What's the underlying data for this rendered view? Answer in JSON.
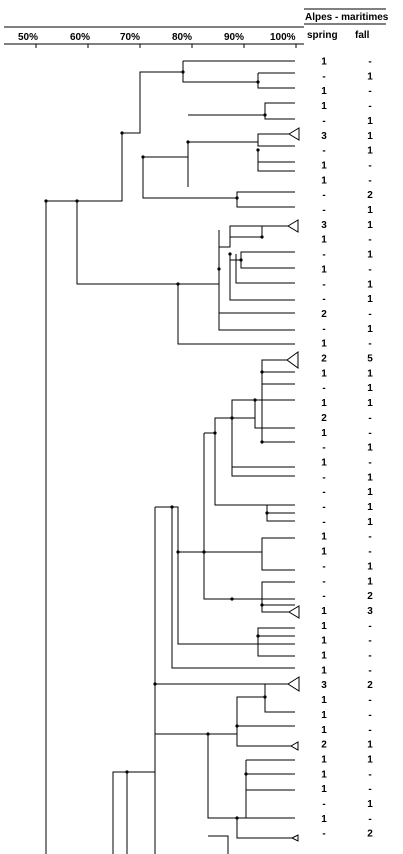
{
  "header": {
    "region": "Alpes - maritimes",
    "col_spring": "spring",
    "col_fall": "fall"
  },
  "scale_labels": [
    "50%",
    "60%",
    "70%",
    "80%",
    "90%",
    "100%"
  ],
  "rows": [
    {
      "spring": "1",
      "fall": "-"
    },
    {
      "spring": "-",
      "fall": "1"
    },
    {
      "spring": "1",
      "fall": "-"
    },
    {
      "spring": "1",
      "fall": "-"
    },
    {
      "spring": "-",
      "fall": "1"
    },
    {
      "spring": "3",
      "fall": "1"
    },
    {
      "spring": "-",
      "fall": "1"
    },
    {
      "spring": "1",
      "fall": "-"
    },
    {
      "spring": "1",
      "fall": "-"
    },
    {
      "spring": "-",
      "fall": "2"
    },
    {
      "spring": "-",
      "fall": "1"
    },
    {
      "spring": "3",
      "fall": "1"
    },
    {
      "spring": "1",
      "fall": "-"
    },
    {
      "spring": "-",
      "fall": "1"
    },
    {
      "spring": "1",
      "fall": "-"
    },
    {
      "spring": "-",
      "fall": "1"
    },
    {
      "spring": "-",
      "fall": "1"
    },
    {
      "spring": "2",
      "fall": "-"
    },
    {
      "spring": "-",
      "fall": "1"
    },
    {
      "spring": "1",
      "fall": "-"
    },
    {
      "spring": "2",
      "fall": "5"
    },
    {
      "spring": "1",
      "fall": "1"
    },
    {
      "spring": "-",
      "fall": "1"
    },
    {
      "spring": "1",
      "fall": "1"
    },
    {
      "spring": "2",
      "fall": "-"
    },
    {
      "spring": "1",
      "fall": "-"
    },
    {
      "spring": "-",
      "fall": "1"
    },
    {
      "spring": "1",
      "fall": "-"
    },
    {
      "spring": "-",
      "fall": "1"
    },
    {
      "spring": "-",
      "fall": "1"
    },
    {
      "spring": "-",
      "fall": "1"
    },
    {
      "spring": "-",
      "fall": "1"
    },
    {
      "spring": "1",
      "fall": "-"
    },
    {
      "spring": "1",
      "fall": "-"
    },
    {
      "spring": "-",
      "fall": "1"
    },
    {
      "spring": "-",
      "fall": "1"
    },
    {
      "spring": "-",
      "fall": "2"
    },
    {
      "spring": "1",
      "fall": "3"
    },
    {
      "spring": "1",
      "fall": "-"
    },
    {
      "spring": "1",
      "fall": "-"
    },
    {
      "spring": "1",
      "fall": "-"
    },
    {
      "spring": "1",
      "fall": "-"
    },
    {
      "spring": "3",
      "fall": "2"
    },
    {
      "spring": "1",
      "fall": "-"
    },
    {
      "spring": "1",
      "fall": "-"
    },
    {
      "spring": "1",
      "fall": "-"
    },
    {
      "spring": "2",
      "fall": "1"
    },
    {
      "spring": "1",
      "fall": "1"
    },
    {
      "spring": "1",
      "fall": "-"
    },
    {
      "spring": "1",
      "fall": "-"
    },
    {
      "spring": "-",
      "fall": "1"
    },
    {
      "spring": "1",
      "fall": "-"
    },
    {
      "spring": "-",
      "fall": "2"
    }
  ]
}
